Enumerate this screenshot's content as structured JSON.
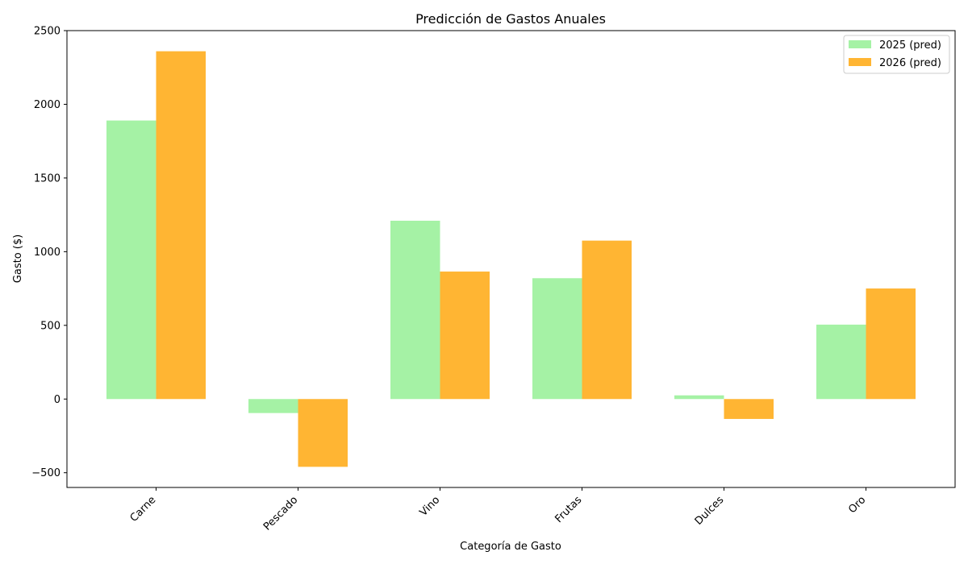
{
  "chart_data": {
    "type": "bar",
    "title": "Predicción de Gastos Anuales",
    "xlabel": "Categoría de Gasto",
    "ylabel": "Gasto ($)",
    "categories": [
      "Carne",
      "Pescado",
      "Vino",
      "Frutas",
      "Dulces",
      "Oro"
    ],
    "series": [
      {
        "name": "2025 (pred)",
        "color": "#a5f2a5",
        "values": [
          1890,
          -95,
          1210,
          820,
          25,
          505
        ]
      },
      {
        "name": "2026 (pred)",
        "color": "#ffb533",
        "values": [
          2360,
          -460,
          865,
          1075,
          -135,
          750
        ]
      }
    ],
    "ylim": [
      -600,
      2500
    ],
    "yticks": [
      -500,
      0,
      500,
      1000,
      1500,
      2000,
      2500
    ],
    "grid": false,
    "legend_position": "top-right"
  }
}
